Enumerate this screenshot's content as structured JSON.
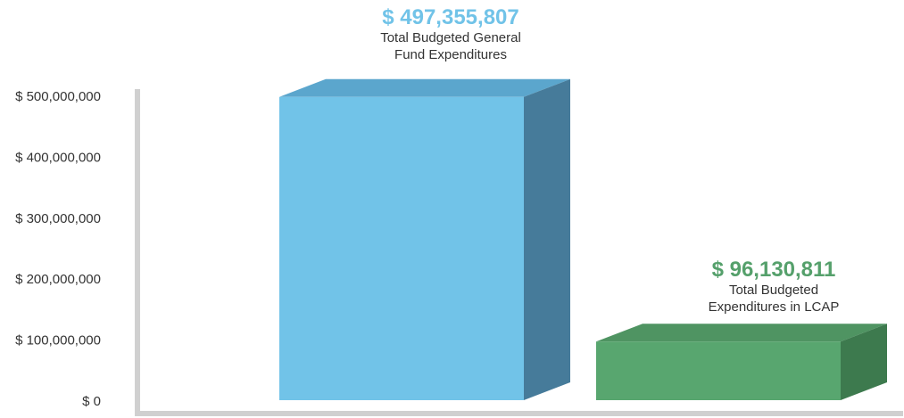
{
  "chart_data": {
    "type": "bar",
    "title": "",
    "xlabel": "",
    "ylabel": "",
    "ylim": [
      0,
      500000000
    ],
    "y_ticks": [
      {
        "value": 0,
        "label": "$ 0"
      },
      {
        "value": 100000000,
        "label": "$ 100,000,000"
      },
      {
        "value": 200000000,
        "label": "$ 200,000,000"
      },
      {
        "value": 300000000,
        "label": "$ 300,000,000"
      },
      {
        "value": 400000000,
        "label": "$ 400,000,000"
      },
      {
        "value": 500000000,
        "label": "$ 500,000,000"
      }
    ],
    "grid": false,
    "style": "3d-bars",
    "categories": [
      "Total Budgeted General Fund Expenditures",
      "Total Budgeted Expenditures in LCAP"
    ],
    "values": [
      497355807,
      96130811
    ],
    "bars": [
      {
        "value": 497355807,
        "value_label": "$ 497,355,807",
        "label_lines": [
          "Total Budgeted General",
          "Fund Expenditures"
        ],
        "colors": {
          "front": "#71c3e8",
          "top": "#5ba6cd",
          "side": "#467b9a",
          "value_text": "#71c3e8"
        }
      },
      {
        "value": 96130811,
        "value_label": "$ 96,130,811",
        "label_lines": [
          "Total Budgeted",
          "Expenditures in LCAP"
        ],
        "colors": {
          "front": "#58a66f",
          "top": "#4f9462",
          "side": "#3d7a4e",
          "value_text": "#55a06b"
        }
      }
    ],
    "axis_color": "#d0d0d0"
  }
}
